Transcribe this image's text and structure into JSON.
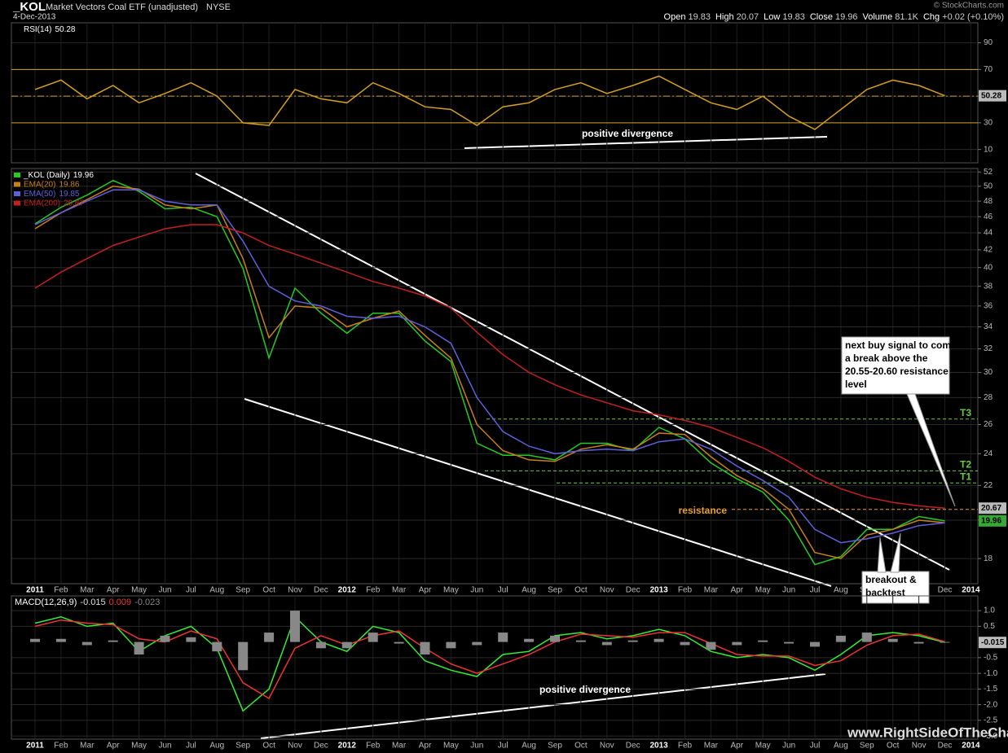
{
  "header": {
    "symbol": "_KOL",
    "name": "Market Vectors Coal ETF (unadjusted)",
    "exchange": "NYSE",
    "date": "4-Dec-2013",
    "copyright": "© StockCharts.com",
    "quote": [
      {
        "label": "Open",
        "value": "19.83"
      },
      {
        "label": "High",
        "value": "20.07"
      },
      {
        "label": "Low",
        "value": "19.83"
      },
      {
        "label": "Close",
        "value": "19.96"
      },
      {
        "label": "Volume",
        "value": "81.1K"
      },
      {
        "label": "Chg",
        "value": "+0.02 (+0.10%)"
      }
    ],
    "watermark": "www.RightSideOfTheChart.com"
  },
  "chart_data": [
    {
      "type": "line",
      "ylim": [
        0,
        105
      ],
      "yticks": [
        10,
        30,
        50,
        70,
        90
      ],
      "bands": [
        30,
        70
      ],
      "midline": 50,
      "series": [
        {
          "name": "RSI(14)",
          "color": "#d4a020",
          "values": [
            55,
            62,
            48,
            58,
            45,
            52,
            60,
            50,
            30,
            28,
            55,
            48,
            45,
            60,
            52,
            42,
            40,
            28,
            42,
            45,
            55,
            60,
            52,
            58,
            65,
            55,
            45,
            40,
            50,
            35,
            25,
            40,
            55,
            62,
            58,
            50.28,
            null
          ]
        }
      ],
      "annotations": [
        {
          "text": "positive divergence"
        }
      ]
    },
    {
      "type": "line",
      "log": true,
      "categories": [
        "2011",
        "Feb",
        "Mar",
        "Apr",
        "May",
        "Jun",
        "Jul",
        "Aug",
        "Sep",
        "Oct",
        "Nov",
        "Dec",
        "2012",
        "Feb",
        "Mar",
        "Apr",
        "May",
        "Jun",
        "Jul",
        "Aug",
        "Sep",
        "Oct",
        "Nov",
        "Dec",
        "2013",
        "Feb",
        "Mar",
        "Apr",
        "May",
        "Jun",
        "Jul",
        "Aug",
        "Sep",
        "Oct",
        "Nov",
        "Dec",
        "2014"
      ],
      "ylim": [
        16.8,
        52.5
      ],
      "yticks": [
        18,
        20,
        22,
        24,
        26,
        28,
        30,
        32,
        34,
        36,
        38,
        40,
        42,
        44,
        46,
        48,
        50,
        52
      ],
      "series": [
        {
          "name": "_KOL (Daily)",
          "color": "#22cc22",
          "values": [
            45.1,
            47.2,
            48.8,
            50.8,
            49.3,
            47.0,
            47.2,
            46,
            39.9,
            31.2,
            37.8,
            35.3,
            33.4,
            35.3,
            35.3,
            32.7,
            30.9,
            24.7,
            23.9,
            23.9,
            23.6,
            24.7,
            24.7,
            24.2,
            25.8,
            25.0,
            23.4,
            22.4,
            21.6,
            20.0,
            17.7,
            18.1,
            19.5,
            19.5,
            20.2,
            19.96,
            null
          ]
        },
        {
          "name": "EMA(20)",
          "color": "#c8801a",
          "values": [
            44.5,
            46.5,
            48.2,
            50,
            49.6,
            47.5,
            47,
            47.5,
            41,
            33,
            36,
            35.8,
            34,
            34.8,
            35.5,
            33.2,
            31.2,
            26,
            24.2,
            23.6,
            23.5,
            24.3,
            24.6,
            24.3,
            25.4,
            25.3,
            23.8,
            22.6,
            21.8,
            20.6,
            18.3,
            18,
            19.2,
            19.5,
            20,
            19.86,
            null
          ]
        },
        {
          "name": "EMA(50)",
          "color": "#6060dd",
          "values": [
            45,
            46.5,
            48,
            49.5,
            49.5,
            48,
            47.5,
            47.5,
            43,
            38,
            36.5,
            36,
            35,
            34.8,
            35,
            34,
            32.5,
            28,
            25.5,
            24.5,
            24,
            24.2,
            24.3,
            24.2,
            24.8,
            25,
            24.3,
            23.2,
            22.3,
            21.3,
            19.5,
            18.8,
            19,
            19.3,
            19.7,
            19.85,
            null
          ]
        },
        {
          "name": "EMA(200)",
          "color": "#c42020",
          "values": [
            37.8,
            39.5,
            41,
            42.5,
            43.5,
            44.5,
            45,
            45,
            44,
            42.5,
            41.5,
            40.5,
            39.5,
            38.5,
            37.8,
            37,
            35.8,
            33.5,
            31.5,
            30,
            29,
            28.2,
            27.6,
            27,
            26.7,
            26.3,
            25.8,
            25.1,
            24.4,
            23.5,
            22.5,
            21.8,
            21.3,
            21,
            20.8,
            20.67,
            null
          ]
        }
      ],
      "levels": [
        {
          "label": "T3",
          "value": 26.4,
          "color": "#66cc44"
        },
        {
          "label": "T2",
          "value": 22.9,
          "color": "#66cc44"
        },
        {
          "label": "T1",
          "value": 22.15,
          "color": "#66cc44"
        },
        {
          "label": "resistance",
          "value": 20.6,
          "color": "#e8a020"
        }
      ],
      "annotations": [
        {
          "lines": [
            "next buy signal to come on",
            "a break above the",
            "20.55-20.60 resistance",
            "level"
          ]
        },
        {
          "lines": [
            "breakout &",
            "backtest"
          ]
        }
      ]
    },
    {
      "type": "line",
      "categories": [
        "2011",
        "Feb",
        "Mar",
        "Apr",
        "May",
        "Jun",
        "Jul",
        "Aug",
        "Sep",
        "Oct",
        "Nov",
        "Dec",
        "2012",
        "Feb",
        "Mar",
        "Apr",
        "May",
        "Jun",
        "Jul",
        "Aug",
        "Sep",
        "Oct",
        "Nov",
        "Dec",
        "2013",
        "Feb",
        "Mar",
        "Apr",
        "May",
        "Jun",
        "Jul",
        "Aug",
        "Sep",
        "Oct",
        "Nov",
        "Dec",
        "2014"
      ],
      "ylim": [
        -3.1,
        1.47
      ],
      "yticks": [
        {
          "value": 1,
          "label": "1.0"
        },
        0.5,
        -0.5,
        {
          "value": -1,
          "label": "-1.0"
        },
        -1.5,
        {
          "value": -2,
          "label": "-2.0"
        },
        -2.5,
        {
          "value": -3,
          "label": "-3.0"
        }
      ],
      "series": [
        {
          "name": "MACD(12,26,9)",
          "color": "#33ee33",
          "values": [
            0.6,
            0.8,
            0.5,
            0.6,
            -0.3,
            0.2,
            0.5,
            -0.2,
            -2.2,
            -1.5,
            0.8,
            0.0,
            -0.3,
            0.5,
            0.3,
            -0.6,
            -0.9,
            -1.1,
            -0.4,
            -0.3,
            0.2,
            0.3,
            0.1,
            0.2,
            0.4,
            0.2,
            -0.3,
            -0.5,
            -0.4,
            -0.5,
            -0.9,
            -0.4,
            0.2,
            0.3,
            0.2,
            -0.015,
            null
          ]
        },
        {
          "color": "#ee3333",
          "values": [
            0.5,
            0.7,
            0.6,
            0.55,
            0.1,
            0.0,
            0.35,
            0.1,
            -1.3,
            -1.8,
            -0.2,
            0.2,
            -0.1,
            0.2,
            0.35,
            -0.2,
            -0.7,
            -1.0,
            -0.7,
            -0.4,
            0.0,
            0.25,
            0.2,
            0.15,
            0.3,
            0.3,
            -0.05,
            -0.4,
            -0.45,
            -0.45,
            -0.75,
            -0.6,
            -0.1,
            0.2,
            0.25,
            0.009,
            null
          ]
        },
        {
          "type": "bar",
          "color": "#888888",
          "values": [
            0.1,
            0.1,
            -0.1,
            0.05,
            -0.4,
            0.2,
            0.15,
            -0.3,
            -0.9,
            0.3,
            1.0,
            -0.2,
            -0.2,
            0.3,
            -0.05,
            -0.4,
            -0.2,
            -0.1,
            0.3,
            0.1,
            0.2,
            0.05,
            -0.1,
            0.05,
            0.1,
            -0.1,
            -0.25,
            -0.1,
            0.05,
            -0.05,
            -0.15,
            0.2,
            0.3,
            0.1,
            -0.05,
            -0.023,
            null
          ]
        }
      ],
      "annotations": [
        {
          "text": "positive divergence"
        }
      ]
    }
  ]
}
